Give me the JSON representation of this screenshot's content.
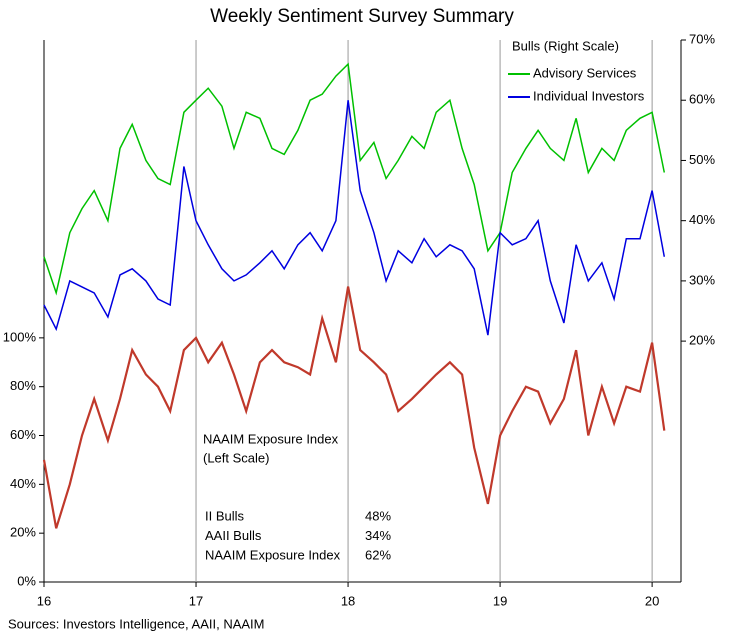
{
  "chart_data": {
    "type": "line",
    "title": "Weekly Sentiment Survey Summary",
    "legend_title": "Bulls (Right Scale)",
    "annotation": [
      "NAAIM  Exposure Index",
      "(Left Scale)"
    ],
    "source": "Sources: Investors Intelligence, AAII,  NAAIM",
    "x": [
      16,
      16.08,
      16.17,
      16.25,
      16.33,
      16.42,
      16.5,
      16.58,
      16.67,
      16.75,
      16.83,
      16.92,
      17,
      17.08,
      17.17,
      17.25,
      17.33,
      17.42,
      17.5,
      17.58,
      17.67,
      17.75,
      17.83,
      17.92,
      18,
      18.08,
      18.17,
      18.25,
      18.33,
      18.42,
      18.5,
      18.58,
      18.67,
      18.75,
      18.83,
      18.92,
      19,
      19.08,
      19.17,
      19.25,
      19.33,
      19.42,
      19.5,
      19.58,
      19.67,
      19.75,
      19.83,
      19.92,
      20,
      20.08
    ],
    "series": [
      {
        "name": "Advisory Services",
        "color": "#00c000",
        "axis": "y2",
        "values": [
          34,
          28,
          38,
          42,
          45,
          40,
          52,
          56,
          50,
          47,
          46,
          58,
          60,
          62,
          59,
          52,
          58,
          57,
          52,
          51,
          55,
          60,
          61,
          64,
          66,
          50,
          53,
          47,
          50,
          54,
          52,
          58,
          60,
          52,
          46,
          35,
          38,
          48,
          52,
          55,
          52,
          50,
          57,
          48,
          52,
          50,
          55,
          57,
          58,
          48
        ]
      },
      {
        "name": "Individual Investors",
        "color": "#0000e0",
        "axis": "y2",
        "values": [
          26,
          22,
          30,
          29,
          28,
          24,
          31,
          32,
          30,
          27,
          26,
          49,
          40,
          36,
          32,
          30,
          31,
          33,
          35,
          32,
          36,
          38,
          35,
          40,
          60,
          45,
          38,
          30,
          35,
          33,
          37,
          34,
          36,
          35,
          32,
          21,
          38,
          36,
          37,
          40,
          30,
          23,
          36,
          30,
          33,
          27,
          37,
          37,
          45,
          34
        ]
      },
      {
        "name": "NAAIM Exposure Index",
        "color": "#c0392b",
        "axis": "y",
        "values": [
          50,
          22,
          40,
          60,
          75,
          58,
          75,
          95,
          85,
          80,
          70,
          95,
          100,
          90,
          98,
          85,
          70,
          90,
          95,
          90,
          88,
          85,
          108,
          90,
          121,
          95,
          90,
          85,
          70,
          75,
          80,
          85,
          90,
          85,
          55,
          32,
          60,
          70,
          80,
          78,
          65,
          75,
          95,
          60,
          80,
          65,
          80,
          78,
          98,
          62
        ]
      }
    ],
    "summary": [
      {
        "label": "II Bulls",
        "value": "48%"
      },
      {
        "label": "AAII Bulls",
        "value": "34%"
      },
      {
        "label": "NAAIM Exposure Index",
        "value": "62%"
      }
    ],
    "xlim": [
      16,
      20.19
    ],
    "xticks": [
      16,
      17,
      18,
      19,
      20
    ],
    "ylim": [
      0,
      222
    ],
    "yticks": [
      {
        "value": 0,
        "label": "0%"
      },
      {
        "value": 20,
        "label": "20%"
      },
      {
        "value": 40,
        "label": "40%"
      },
      {
        "value": 60,
        "label": "60%"
      },
      {
        "value": 80,
        "label": "80%"
      },
      {
        "value": 100,
        "label": "100%"
      }
    ],
    "y2lim": [
      -20,
      70
    ],
    "y2ticks": [
      {
        "value": 20,
        "label": "20%"
      },
      {
        "value": 30,
        "label": "30%"
      },
      {
        "value": 40,
        "label": "40%"
      },
      {
        "value": 50,
        "label": "50%"
      },
      {
        "value": 60,
        "label": "60%"
      },
      {
        "value": 70,
        "label": "70%"
      }
    ],
    "grid": true
  }
}
